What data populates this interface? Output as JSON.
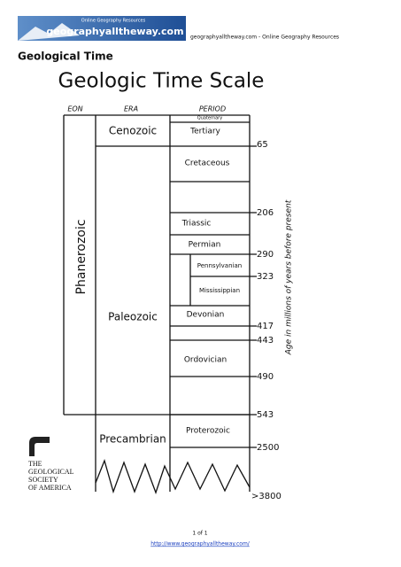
{
  "header": {
    "logo_text": "geographyalltheway.com",
    "logo_tagline": "Online Geography Resources",
    "site_text": "geographyalltheway.com - Online Geography Resources"
  },
  "page_title": "Geological Time",
  "diagram": {
    "title": "Geologic Time Scale",
    "columns": [
      "EON",
      "ERA",
      "PERIOD"
    ],
    "eons": [
      "Phanerozoic"
    ],
    "eras": [
      "Cenozoic",
      "Paleozoic",
      "Precambrian"
    ],
    "periods": [
      "Quaternary",
      "Tertiary",
      "Cretaceous",
      "Triassic",
      "Permian",
      "Pennsylvanian",
      "Mississippian",
      "Devonian",
      "Ordovician",
      "Proterozoic"
    ],
    "ages": [
      65,
      206,
      290,
      323,
      417,
      443,
      490,
      543,
      2500,
      ">3800"
    ],
    "axis_label": "Age in millions of years before present",
    "society": [
      "THE",
      "GEOLOGICAL",
      "SOCIETY",
      "OF AMERICA"
    ]
  },
  "footer": {
    "page": "1 of 1",
    "url": "http://www.geographyalltheway.com/"
  }
}
